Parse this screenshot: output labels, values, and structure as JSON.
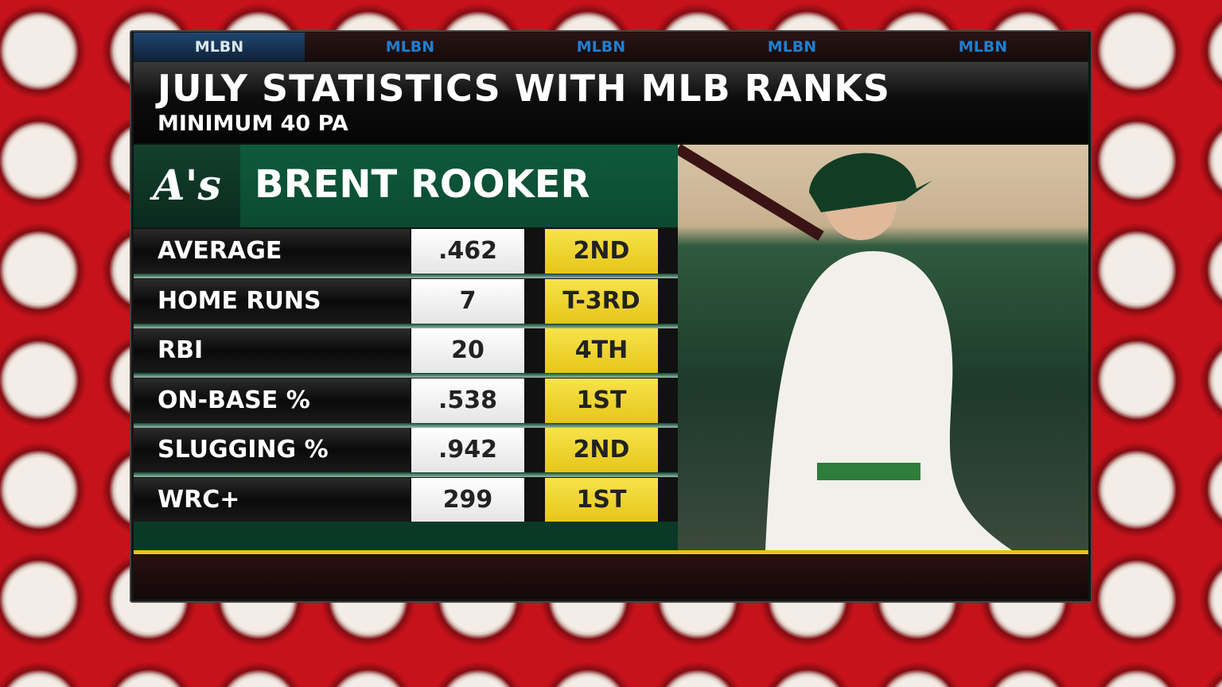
{
  "tabs": [
    "MLBN",
    "MLBN",
    "MLBN",
    "MLBN",
    "MLBN"
  ],
  "header": {
    "title": "JULY STATISTICS WITH MLB RANKS",
    "subtitle": "MINIMUM 40 PA"
  },
  "player": {
    "logo": "A's",
    "name": "BRENT ROOKER"
  },
  "table": {
    "rows": [
      [
        "AVERAGE",
        ".462",
        "2ND"
      ],
      [
        "HOME RUNS",
        "7",
        "T-3RD"
      ],
      [
        "RBI",
        "20",
        "4TH"
      ],
      [
        "ON-BASE %",
        ".538",
        "1ST"
      ],
      [
        "SLUGGING %",
        ".942",
        "2ND"
      ],
      [
        "WRC+",
        "299",
        "1ST"
      ]
    ]
  }
}
